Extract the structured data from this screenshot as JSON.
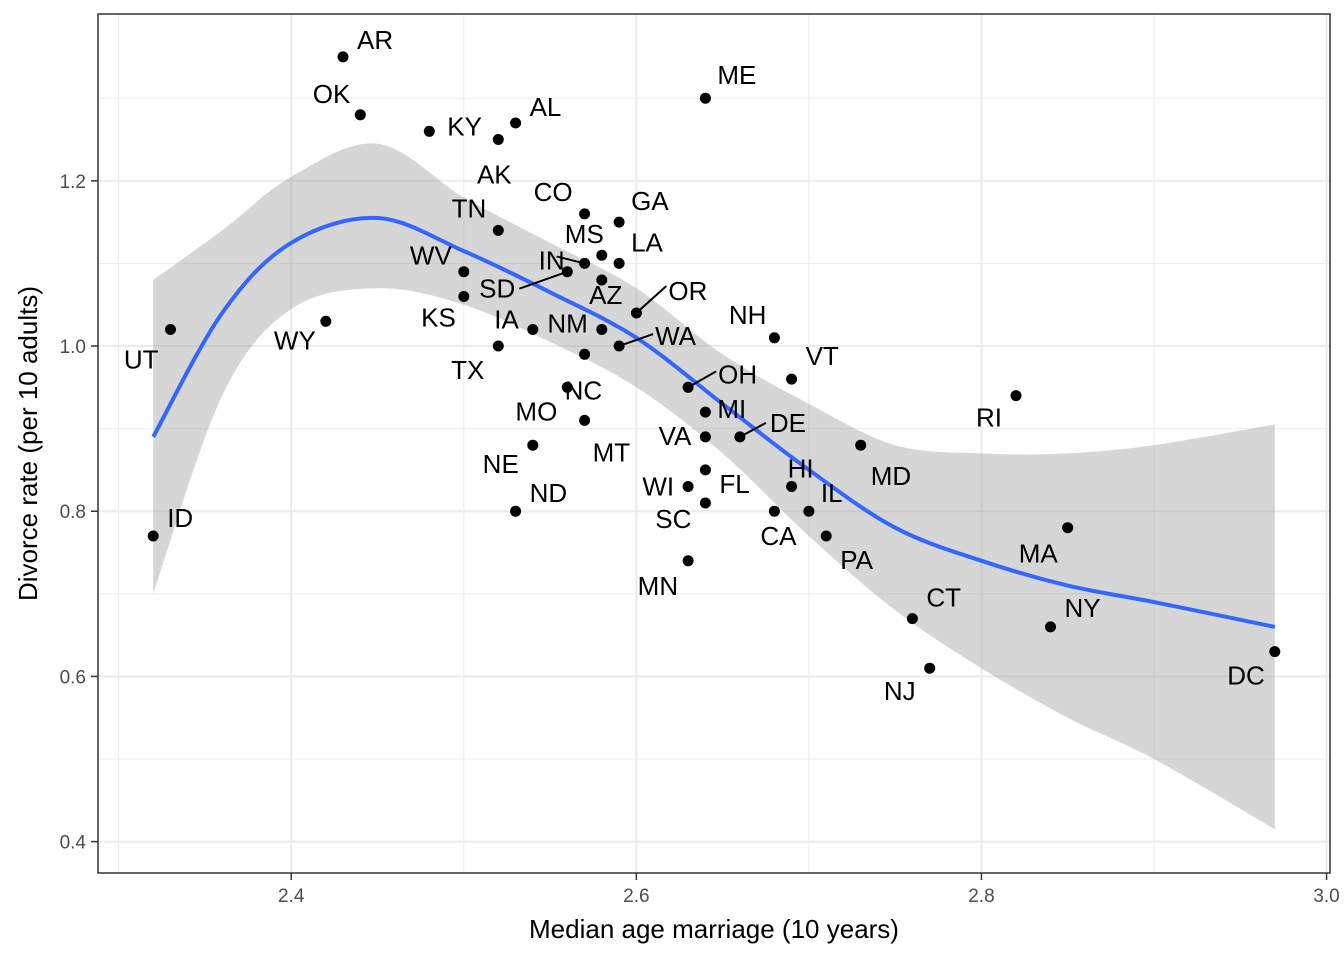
{
  "chart_data": {
    "type": "scatter",
    "title": "",
    "xlabel": "Median age marriage (10 years)",
    "ylabel": "Divorce rate (per 10 adults)",
    "xlim": [
      2.288,
      3.002
    ],
    "ylim": [
      0.362,
      1.402
    ],
    "x_ticks": [
      2.4,
      2.6,
      2.8,
      3.0
    ],
    "x_tick_labels": [
      "2.4",
      "2.6",
      "2.8",
      "3.0"
    ],
    "y_ticks": [
      0.4,
      0.6,
      0.8,
      1.0,
      1.2
    ],
    "y_tick_labels": [
      "0.4",
      "0.6",
      "0.8",
      "1.0",
      "1.2"
    ],
    "grid": true,
    "points": [
      {
        "label": "AR",
        "x": 2.43,
        "y": 1.35
      },
      {
        "label": "OK",
        "x": 2.44,
        "y": 1.28
      },
      {
        "label": "KY",
        "x": 2.48,
        "y": 1.26
      },
      {
        "label": "AL",
        "x": 2.53,
        "y": 1.27
      },
      {
        "label": "AK",
        "x": 2.52,
        "y": 1.25
      },
      {
        "label": "ME",
        "x": 2.64,
        "y": 1.3
      },
      {
        "label": "CO",
        "x": 2.57,
        "y": 1.16
      },
      {
        "label": "GA",
        "x": 2.59,
        "y": 1.15
      },
      {
        "label": "TN",
        "x": 2.52,
        "y": 1.14
      },
      {
        "label": "MS",
        "x": 2.58,
        "y": 1.11
      },
      {
        "label": "LA",
        "x": 2.59,
        "y": 1.1
      },
      {
        "label": "IN",
        "x": 2.57,
        "y": 1.1
      },
      {
        "label": "WV",
        "x": 2.5,
        "y": 1.09
      },
      {
        "label": "SD",
        "x": 2.56,
        "y": 1.09
      },
      {
        "label": "AZ",
        "x": 2.58,
        "y": 1.08
      },
      {
        "label": "KS",
        "x": 2.5,
        "y": 1.06
      },
      {
        "label": "OR",
        "x": 2.6,
        "y": 1.04
      },
      {
        "label": "WY",
        "x": 2.42,
        "y": 1.03
      },
      {
        "label": "UT",
        "x": 2.33,
        "y": 1.02
      },
      {
        "label": "IA",
        "x": 2.54,
        "y": 1.02
      },
      {
        "label": "NM",
        "x": 2.58,
        "y": 1.02
      },
      {
        "label": "NH",
        "x": 2.68,
        "y": 1.01
      },
      {
        "label": "TX",
        "x": 2.52,
        "y": 1.0
      },
      {
        "label": "WA",
        "x": 2.59,
        "y": 1.0
      },
      {
        "label": "NC",
        "x": 2.57,
        "y": 0.99
      },
      {
        "label": "VT",
        "x": 2.69,
        "y": 0.96
      },
      {
        "label": "OH",
        "x": 2.63,
        "y": 0.95
      },
      {
        "label": "MO",
        "x": 2.56,
        "y": 0.95
      },
      {
        "label": "RI",
        "x": 2.82,
        "y": 0.94
      },
      {
        "label": "MI",
        "x": 2.64,
        "y": 0.92
      },
      {
        "label": "MT",
        "x": 2.57,
        "y": 0.91
      },
      {
        "label": "VA",
        "x": 2.64,
        "y": 0.89
      },
      {
        "label": "DE",
        "x": 2.66,
        "y": 0.89
      },
      {
        "label": "NE",
        "x": 2.54,
        "y": 0.88
      },
      {
        "label": "MD",
        "x": 2.73,
        "y": 0.88
      },
      {
        "label": "FL",
        "x": 2.64,
        "y": 0.85
      },
      {
        "label": "WI",
        "x": 2.63,
        "y": 0.83
      },
      {
        "label": "HI",
        "x": 2.69,
        "y": 0.83
      },
      {
        "label": "SC",
        "x": 2.64,
        "y": 0.81
      },
      {
        "label": "ND",
        "x": 2.53,
        "y": 0.8
      },
      {
        "label": "CA",
        "x": 2.68,
        "y": 0.8
      },
      {
        "label": "IL",
        "x": 2.7,
        "y": 0.8
      },
      {
        "label": "PA",
        "x": 2.71,
        "y": 0.77
      },
      {
        "label": "ID",
        "x": 2.32,
        "y": 0.77
      },
      {
        "label": "MA",
        "x": 2.85,
        "y": 0.78
      },
      {
        "label": "MN",
        "x": 2.63,
        "y": 0.74
      },
      {
        "label": "CT",
        "x": 2.76,
        "y": 0.67
      },
      {
        "label": "NY",
        "x": 2.84,
        "y": 0.66
      },
      {
        "label": "DC",
        "x": 2.97,
        "y": 0.63
      },
      {
        "label": "NJ",
        "x": 2.77,
        "y": 0.61
      }
    ],
    "smooth": {
      "method": "loess",
      "color": "#3366FF",
      "band_color": "#999999",
      "band_opacity": 0.4,
      "x": [
        2.32,
        2.36,
        2.4,
        2.45,
        2.5,
        2.55,
        2.6,
        2.65,
        2.7,
        2.75,
        2.8,
        2.85,
        2.9,
        2.97
      ],
      "y": [
        0.89,
        1.04,
        1.125,
        1.155,
        1.115,
        1.065,
        1.01,
        0.93,
        0.85,
        0.78,
        0.74,
        0.71,
        0.69,
        0.66
      ],
      "lower": [
        0.7,
        0.94,
        1.045,
        1.07,
        1.05,
        1.005,
        0.95,
        0.87,
        0.77,
        0.68,
        0.61,
        0.55,
        0.5,
        0.415
      ],
      "upper": [
        1.08,
        1.14,
        1.205,
        1.245,
        1.18,
        1.125,
        1.07,
        0.99,
        0.93,
        0.88,
        0.87,
        0.87,
        0.88,
        0.905
      ]
    },
    "point_color": "#000000"
  }
}
